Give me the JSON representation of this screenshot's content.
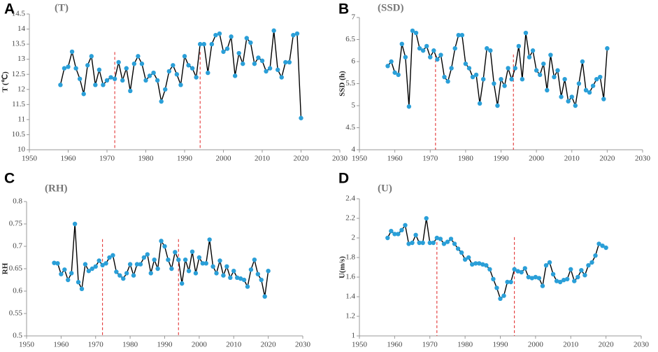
{
  "chart_data": [
    {
      "type": "line",
      "panel": "A",
      "title": "(T)",
      "ylabel": "T (℃)",
      "x": [
        1958,
        1959,
        1960,
        1961,
        1962,
        1963,
        1964,
        1965,
        1966,
        1967,
        1968,
        1969,
        1970,
        1971,
        1972,
        1973,
        1974,
        1975,
        1976,
        1977,
        1978,
        1979,
        1980,
        1981,
        1982,
        1983,
        1984,
        1985,
        1986,
        1987,
        1988,
        1989,
        1990,
        1991,
        1992,
        1993,
        1994,
        1995,
        1996,
        1997,
        1998,
        1999,
        2000,
        2001,
        2002,
        2003,
        2004,
        2005,
        2006,
        2007,
        2008,
        2009,
        2010,
        2011,
        2012,
        2013,
        2014,
        2015,
        2016,
        2017,
        2018,
        2019,
        2020
      ],
      "values": [
        12.15,
        12.7,
        12.75,
        13.25,
        12.7,
        12.35,
        11.85,
        12.8,
        13.1,
        12.15,
        12.65,
        12.15,
        12.3,
        12.4,
        12.35,
        12.9,
        12.3,
        12.7,
        11.95,
        12.85,
        13.1,
        12.85,
        12.3,
        12.45,
        12.55,
        12.3,
        11.6,
        12.0,
        12.6,
        12.8,
        12.5,
        12.15,
        13.1,
        12.8,
        12.7,
        12.4,
        13.5,
        13.5,
        12.55,
        13.5,
        13.8,
        13.85,
        13.25,
        13.35,
        13.75,
        12.45,
        13.2,
        12.85,
        13.7,
        13.55,
        12.85,
        13.05,
        12.95,
        12.6,
        12.7,
        13.95,
        12.65,
        12.4,
        12.9,
        12.9,
        13.8,
        13.85,
        11.05
      ],
      "line_color": "#000000",
      "color": "#2a9fd8",
      "xlim": [
        1950,
        2030
      ],
      "xticks": [
        1950,
        1960,
        1970,
        1980,
        1990,
        2000,
        2010,
        2020,
        2030
      ],
      "ylim": [
        10,
        14.5
      ],
      "yticks": [
        10,
        10.5,
        11,
        11.5,
        12,
        12.5,
        13,
        13.5,
        14,
        14.5
      ],
      "vlines": [
        1972,
        1994
      ],
      "vline_color": "#e02020"
    },
    {
      "type": "line",
      "panel": "B",
      "title": "(SSD)",
      "ylabel": "SSD (h)",
      "x": [
        1958,
        1959,
        1960,
        1961,
        1962,
        1963,
        1964,
        1965,
        1966,
        1967,
        1968,
        1969,
        1970,
        1971,
        1972,
        1973,
        1974,
        1975,
        1976,
        1977,
        1978,
        1979,
        1980,
        1981,
        1982,
        1983,
        1984,
        1985,
        1986,
        1987,
        1988,
        1989,
        1990,
        1991,
        1992,
        1993,
        1994,
        1995,
        1996,
        1997,
        1998,
        1999,
        2000,
        2001,
        2002,
        2003,
        2004,
        2005,
        2006,
        2007,
        2008,
        2009,
        2010,
        2011,
        2012,
        2013,
        2014,
        2015,
        2016,
        2017,
        2018,
        2019,
        2020
      ],
      "values": [
        5.9,
        6.0,
        5.75,
        5.7,
        6.4,
        6.1,
        4.98,
        6.7,
        6.65,
        6.3,
        6.25,
        6.35,
        6.1,
        6.25,
        6.05,
        6.15,
        5.65,
        5.55,
        5.85,
        6.3,
        6.6,
        6.6,
        5.95,
        5.85,
        5.65,
        5.7,
        5.05,
        5.6,
        6.3,
        6.25,
        5.5,
        5.0,
        5.6,
        5.45,
        5.85,
        5.6,
        5.85,
        6.35,
        5.6,
        6.65,
        6.1,
        6.25,
        5.8,
        5.7,
        5.95,
        5.35,
        6.15,
        5.65,
        5.8,
        5.2,
        5.6,
        5.1,
        5.2,
        5.0,
        5.5,
        6.0,
        5.35,
        5.3,
        5.45,
        5.6,
        5.65,
        5.15,
        6.3
      ],
      "line_color": "#000000",
      "color": "#2a9fd8",
      "xlim": [
        1950,
        2030
      ],
      "xticks": [
        1950,
        1960,
        1970,
        1980,
        1990,
        2000,
        2010,
        2020,
        2030
      ],
      "ylim": [
        4,
        7
      ],
      "yticks": [
        4,
        4.5,
        5,
        5.5,
        6,
        6.5,
        7
      ],
      "vlines": [
        1971.5,
        1993.5
      ],
      "vline_color": "#e02020"
    },
    {
      "type": "line",
      "panel": "C",
      "title": "(RH)",
      "ylabel": "RH",
      "x": [
        1958,
        1959,
        1960,
        1961,
        1962,
        1963,
        1964,
        1965,
        1966,
        1967,
        1968,
        1969,
        1970,
        1971,
        1972,
        1973,
        1974,
        1975,
        1976,
        1977,
        1978,
        1979,
        1980,
        1981,
        1982,
        1983,
        1984,
        1985,
        1986,
        1987,
        1988,
        1989,
        1990,
        1991,
        1992,
        1993,
        1994,
        1995,
        1996,
        1997,
        1998,
        1999,
        2000,
        2001,
        2002,
        2003,
        2004,
        2005,
        2006,
        2007,
        2008,
        2009,
        2010,
        2011,
        2012,
        2013,
        2014,
        2015,
        2016,
        2017,
        2018,
        2019,
        2020
      ],
      "values": [
        0.663,
        0.662,
        0.638,
        0.648,
        0.625,
        0.64,
        0.75,
        0.62,
        0.605,
        0.66,
        0.645,
        0.65,
        0.655,
        0.668,
        0.658,
        0.662,
        0.675,
        0.68,
        0.643,
        0.635,
        0.628,
        0.64,
        0.66,
        0.635,
        0.66,
        0.66,
        0.675,
        0.682,
        0.64,
        0.67,
        0.65,
        0.712,
        0.7,
        0.67,
        0.65,
        0.687,
        0.67,
        0.617,
        0.67,
        0.645,
        0.688,
        0.64,
        0.675,
        0.662,
        0.662,
        0.715,
        0.655,
        0.64,
        0.668,
        0.635,
        0.655,
        0.63,
        0.645,
        0.63,
        0.628,
        0.625,
        0.61,
        0.648,
        0.67,
        0.638,
        0.625,
        0.588,
        0.645
      ],
      "line_color": "#000000",
      "color": "#2a9fd8",
      "xlim": [
        1950,
        2030
      ],
      "xticks": [
        1950,
        1960,
        1970,
        1980,
        1990,
        2000,
        2010,
        2020,
        2030
      ],
      "ylim": [
        0.5,
        0.8
      ],
      "yticks": [
        0.5,
        0.55,
        0.6,
        0.65,
        0.7,
        0.75,
        0.8
      ],
      "vlines": [
        1972,
        1994
      ],
      "vline_color": "#e02020"
    },
    {
      "type": "line",
      "panel": "D",
      "title": "(U)",
      "ylabel": "U(m/s)",
      "x": [
        1958,
        1959,
        1960,
        1961,
        1962,
        1963,
        1964,
        1965,
        1966,
        1967,
        1968,
        1969,
        1970,
        1971,
        1972,
        1973,
        1974,
        1975,
        1976,
        1977,
        1978,
        1979,
        1980,
        1981,
        1982,
        1983,
        1984,
        1985,
        1986,
        1987,
        1988,
        1989,
        1990,
        1991,
        1992,
        1993,
        1994,
        1995,
        1996,
        1997,
        1998,
        1999,
        2000,
        2001,
        2002,
        2003,
        2004,
        2005,
        2006,
        2007,
        2008,
        2009,
        2010,
        2011,
        2012,
        2013,
        2014,
        2015,
        2016,
        2017,
        2018,
        2019,
        2020
      ],
      "values": [
        2.0,
        2.07,
        2.04,
        2.04,
        2.08,
        2.13,
        1.94,
        1.95,
        2.03,
        1.95,
        1.95,
        2.2,
        1.95,
        1.95,
        2.0,
        1.99,
        1.94,
        1.96,
        1.99,
        1.94,
        1.89,
        1.85,
        1.78,
        1.8,
        1.73,
        1.74,
        1.74,
        1.73,
        1.72,
        1.68,
        1.58,
        1.49,
        1.38,
        1.41,
        1.55,
        1.55,
        1.68,
        1.66,
        1.65,
        1.69,
        1.6,
        1.59,
        1.6,
        1.59,
        1.51,
        1.72,
        1.75,
        1.63,
        1.56,
        1.55,
        1.57,
        1.58,
        1.68,
        1.56,
        1.6,
        1.67,
        1.62,
        1.72,
        1.75,
        1.82,
        1.94,
        1.92,
        1.9
      ],
      "line_color": "#000000",
      "color": "#2a9fd8",
      "xlim": [
        1950,
        2030
      ],
      "xticks": [
        1950,
        1960,
        1970,
        1980,
        1990,
        2000,
        2010,
        2020,
        2030
      ],
      "ylim": [
        1,
        2.4
      ],
      "yticks": [
        1,
        1.2,
        1.4,
        1.6,
        1.8,
        2,
        2.2,
        2.4
      ],
      "vlines": [
        1972,
        1994
      ],
      "vline_color": "#e02020"
    }
  ]
}
